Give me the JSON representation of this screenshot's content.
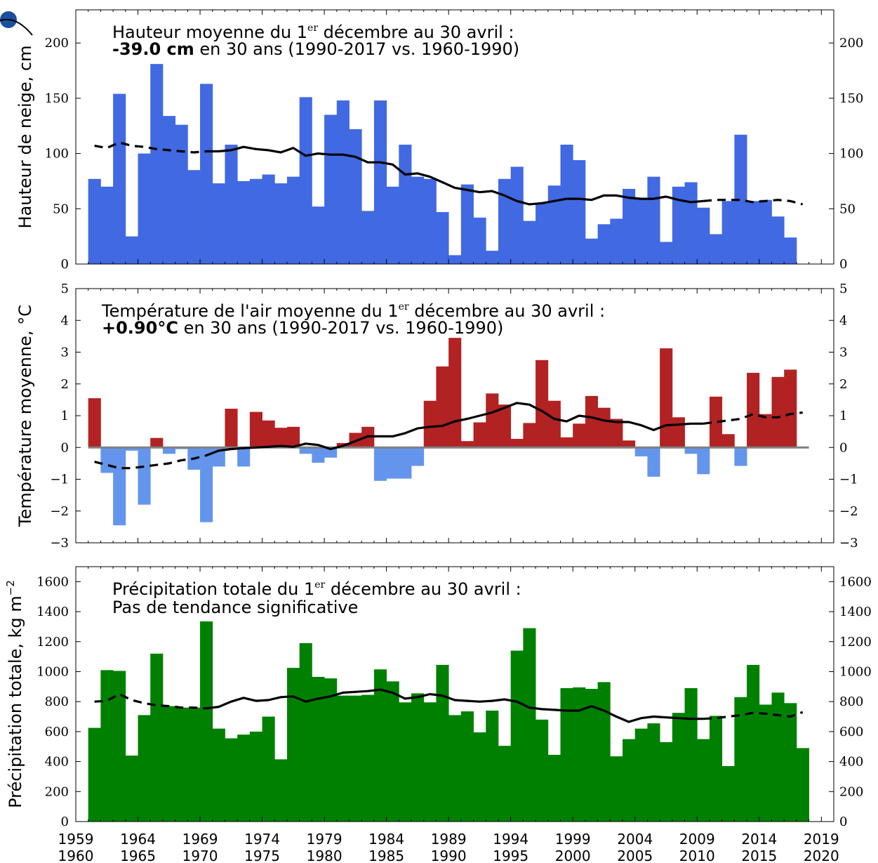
{
  "chart_data": [
    {
      "type": "bar",
      "ylabel": "Hauteur de neige, cm",
      "ylim": [
        0,
        230
      ],
      "yticks": [
        0,
        50,
        100,
        150,
        200
      ],
      "annotation": {
        "line1": "Hauteur moyenne du 1",
        "line1_sup": "er",
        "line1_end": " décembre au 30 avril :",
        "line2_bold": "-39.0 cm",
        "line2_rest": " en 30 ans (1990-2017 vs. 1960-1990)"
      },
      "bar_color": "#4169e1",
      "x": [
        1960,
        1961,
        1962,
        1963,
        1964,
        1965,
        1966,
        1967,
        1968,
        1969,
        1970,
        1971,
        1972,
        1973,
        1974,
        1975,
        1976,
        1977,
        1978,
        1979,
        1980,
        1981,
        1982,
        1983,
        1984,
        1985,
        1986,
        1987,
        1988,
        1989,
        1990,
        1991,
        1992,
        1993,
        1994,
        1995,
        1996,
        1997,
        1998,
        1999,
        2000,
        2001,
        2002,
        2003,
        2004,
        2005,
        2006,
        2007,
        2008,
        2009,
        2010,
        2011,
        2012,
        2013,
        2014,
        2015,
        2016,
        2017
      ],
      "values": [
        77,
        70,
        154,
        25,
        100,
        181,
        134,
        126,
        85,
        163,
        73,
        108,
        75,
        77,
        81,
        73,
        79,
        151,
        52,
        135,
        148,
        122,
        48,
        148,
        70,
        108,
        79,
        77,
        47,
        8,
        72,
        42,
        12,
        77,
        88,
        39,
        55,
        71,
        108,
        94,
        23,
        36,
        41,
        68,
        59,
        79,
        20,
        70,
        74,
        51,
        27,
        57,
        117,
        57,
        58,
        43,
        24,
        null
      ],
      "trend": {
        "x": [
          1960,
          1961,
          1962,
          1963,
          1964,
          1965,
          1966,
          1967,
          1968,
          1969,
          1970,
          1971,
          1972,
          1973,
          1974,
          1975,
          1976,
          1977,
          1978,
          1979,
          1980,
          1981,
          1982,
          1983,
          1984,
          1985,
          1986,
          1987,
          1988,
          1989,
          1990,
          1991,
          1992,
          1993,
          1994,
          1995,
          1996,
          1997,
          1998,
          1999,
          2000,
          2001,
          2002,
          2003,
          2004,
          2005,
          2006,
          2007,
          2008,
          2009,
          2010,
          2011,
          2012,
          2013,
          2014,
          2015,
          2016,
          2017
        ],
        "values": [
          107,
          105,
          110,
          107,
          106,
          104,
          103,
          102,
          101,
          102,
          102,
          103,
          106,
          104,
          103,
          101,
          105,
          98,
          100,
          99,
          99,
          97,
          92,
          92,
          90,
          81,
          82,
          79,
          74,
          69,
          67,
          65,
          66,
          62,
          57,
          54,
          55,
          57,
          59,
          59,
          58,
          62,
          62,
          60,
          59,
          59,
          61,
          58,
          56,
          57,
          58,
          58,
          58,
          56,
          57,
          58,
          57,
          54
        ],
        "dashed_x_end": 1969,
        "dashed_x_start": 2009
      }
    },
    {
      "type": "bar",
      "ylabel": "Température moyenne, °C",
      "ylim": [
        -3,
        5
      ],
      "yticks": [
        -3,
        -2,
        -1,
        0,
        1,
        2,
        3,
        4,
        5
      ],
      "annotation": {
        "line1": "Température de l'air moyenne du 1",
        "line1_sup": "er",
        "line1_end": " décembre au 30 avril :",
        "line2_bold": "+0.90°C",
        "line2_rest": " en 30 ans (1990-2017 vs. 1960-1990)"
      },
      "pos_color": "#b22222",
      "neg_color": "#6495ed",
      "x": [
        1960,
        1961,
        1962,
        1963,
        1964,
        1965,
        1966,
        1967,
        1968,
        1969,
        1970,
        1971,
        1972,
        1973,
        1974,
        1975,
        1976,
        1977,
        1978,
        1979,
        1980,
        1981,
        1982,
        1983,
        1984,
        1985,
        1986,
        1987,
        1988,
        1989,
        1990,
        1991,
        1992,
        1993,
        1994,
        1995,
        1996,
        1997,
        1998,
        1999,
        2000,
        2001,
        2002,
        2003,
        2004,
        2005,
        2006,
        2007,
        2008,
        2009,
        2010,
        2011,
        2012,
        2013,
        2014,
        2015,
        2016,
        2017
      ],
      "values": [
        1.55,
        -0.8,
        -2.45,
        -0.1,
        -1.8,
        0.3,
        -0.2,
        -0.05,
        -0.7,
        -2.35,
        -0.6,
        1.22,
        -0.6,
        1.12,
        0.85,
        0.62,
        0.65,
        -0.2,
        -0.48,
        -0.32,
        0.14,
        0.46,
        0.65,
        -1.05,
        -0.98,
        -0.98,
        -0.58,
        1.47,
        2.55,
        3.45,
        0.2,
        0.79,
        1.7,
        1.35,
        0.27,
        0.77,
        2.75,
        1.47,
        0.32,
        0.75,
        1.62,
        1.25,
        0.9,
        0.22,
        -0.28,
        -0.92,
        3.12,
        0.95,
        -0.2,
        -0.84,
        1.6,
        0.42,
        -0.58,
        2.35,
        1.05,
        2.22,
        2.45,
        null
      ],
      "trend": {
        "x": [
          1960,
          1961,
          1962,
          1963,
          1964,
          1965,
          1966,
          1967,
          1968,
          1969,
          1970,
          1971,
          1972,
          1973,
          1974,
          1975,
          1976,
          1977,
          1978,
          1979,
          1980,
          1981,
          1982,
          1983,
          1984,
          1985,
          1986,
          1987,
          1988,
          1989,
          1990,
          1991,
          1992,
          1993,
          1994,
          1995,
          1996,
          1997,
          1998,
          1999,
          2000,
          2001,
          2002,
          2003,
          2004,
          2005,
          2006,
          2007,
          2008,
          2009,
          2010,
          2011,
          2012,
          2013,
          2014,
          2015,
          2016,
          2017
        ],
        "values": [
          -0.45,
          -0.55,
          -0.65,
          -0.65,
          -0.6,
          -0.55,
          -0.5,
          -0.4,
          -0.35,
          -0.25,
          -0.1,
          -0.05,
          -0.02,
          0.0,
          0.02,
          0.05,
          0.02,
          0.12,
          0.08,
          -0.05,
          0.05,
          0.2,
          0.35,
          0.35,
          0.35,
          0.45,
          0.6,
          0.65,
          0.68,
          0.82,
          0.9,
          1.0,
          1.1,
          1.25,
          1.4,
          1.35,
          1.15,
          0.9,
          0.82,
          1.0,
          0.95,
          0.85,
          0.8,
          0.8,
          0.7,
          0.55,
          0.7,
          0.72,
          0.75,
          0.75,
          0.8,
          0.85,
          0.9,
          1.05,
          0.95,
          0.95,
          1.05,
          1.1
        ],
        "dashed_x_end": 1969,
        "dashed_x_start": 2009
      },
      "zero_line_color": "#808080"
    },
    {
      "type": "bar",
      "ylabel": "Précipitation totale, kg m",
      "ylabel_sup": "−2",
      "ylim": [
        0,
        1700
      ],
      "yticks": [
        0,
        200,
        400,
        600,
        800,
        1000,
        1200,
        1400,
        1600
      ],
      "annotation": {
        "line1": "Précipitation totale du 1",
        "line1_sup": "er",
        "line1_end": " décembre au 30 avril :",
        "line2_bold": "",
        "line2_rest": "Pas de tendance significative"
      },
      "bar_color": "#008000",
      "x": [
        1960,
        1961,
        1962,
        1963,
        1964,
        1965,
        1966,
        1967,
        1968,
        1969,
        1970,
        1971,
        1972,
        1973,
        1974,
        1975,
        1976,
        1977,
        1978,
        1979,
        1980,
        1981,
        1982,
        1983,
        1984,
        1985,
        1986,
        1987,
        1988,
        1989,
        1990,
        1991,
        1992,
        1993,
        1994,
        1995,
        1996,
        1997,
        1998,
        1999,
        2000,
        2001,
        2002,
        2003,
        2004,
        2005,
        2006,
        2007,
        2008,
        2009,
        2010,
        2011,
        2012,
        2013,
        2014,
        2015,
        2016,
        2017
      ],
      "values": [
        625,
        1010,
        1005,
        440,
        710,
        1120,
        770,
        760,
        760,
        1335,
        620,
        555,
        580,
        600,
        700,
        415,
        1025,
        1190,
        965,
        955,
        840,
        840,
        845,
        1015,
        935,
        795,
        855,
        795,
        1045,
        710,
        735,
        595,
        740,
        505,
        1140,
        1290,
        680,
        445,
        890,
        895,
        885,
        930,
        435,
        550,
        620,
        655,
        530,
        725,
        890,
        550,
        705,
        370,
        830,
        1045,
        780,
        860,
        790,
        490
      ],
      "trend": {
        "x": [
          1960,
          1961,
          1962,
          1963,
          1964,
          1965,
          1966,
          1967,
          1968,
          1969,
          1970,
          1971,
          1972,
          1973,
          1974,
          1975,
          1976,
          1977,
          1978,
          1979,
          1980,
          1981,
          1982,
          1983,
          1984,
          1985,
          1986,
          1987,
          1988,
          1989,
          1990,
          1991,
          1992,
          1993,
          1994,
          1995,
          1996,
          1997,
          1998,
          1999,
          2000,
          2001,
          2002,
          2003,
          2004,
          2005,
          2006,
          2007,
          2008,
          2009,
          2010,
          2011,
          2012,
          2013,
          2014,
          2015,
          2016,
          2017
        ],
        "values": [
          800,
          805,
          850,
          810,
          790,
          775,
          770,
          760,
          760,
          755,
          765,
          800,
          825,
          805,
          810,
          830,
          835,
          800,
          820,
          835,
          860,
          865,
          870,
          880,
          860,
          820,
          830,
          850,
          840,
          810,
          805,
          800,
          805,
          815,
          800,
          760,
          750,
          745,
          740,
          740,
          770,
          740,
          700,
          665,
          690,
          700,
          695,
          690,
          685,
          685,
          690,
          700,
          710,
          725,
          720,
          710,
          700,
          730
        ],
        "dashed_x_end": 1969,
        "dashed_x_start": 2009
      }
    }
  ],
  "xaxis": {
    "xlim": [
      1959,
      2020
    ],
    "top_row_labels": [
      "1959",
      "1964",
      "1969",
      "1974",
      "1979",
      "1984",
      "1989",
      "1994",
      "1999",
      "2004",
      "2009",
      "2014",
      "2019"
    ],
    "top_row_values": [
      1959,
      1964,
      1969,
      1974,
      1979,
      1984,
      1989,
      1994,
      1999,
      2004,
      2009,
      2014,
      2019
    ],
    "bottom_row_labels": [
      "1960",
      "1965",
      "1970",
      "1975",
      "1980",
      "1985",
      "1990",
      "1995",
      "2000",
      "2005",
      "2010",
      "2015",
      "2020"
    ],
    "bottom_row_values": [
      1960,
      1965,
      1970,
      1975,
      1980,
      1985,
      1990,
      1995,
      2000,
      2005,
      2010,
      2015,
      2020
    ]
  },
  "colors": {
    "trend_line": "#000000",
    "logo_blue": "#1a4f9c"
  }
}
